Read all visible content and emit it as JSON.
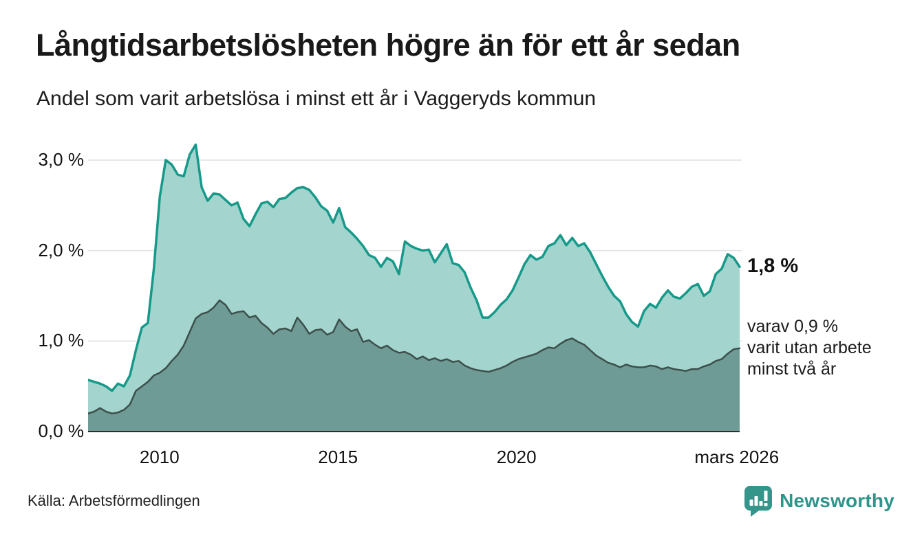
{
  "page": {
    "title": "Långtidsarbetslösheten högre än för ett år sedan",
    "subtitle": "Andel som varit arbetslösa i minst ett år i Vaggeryds kommun",
    "source": "Källa: Arbetsförmedlingen",
    "brand": {
      "name": "Newsworthy",
      "color": "#2e958b"
    }
  },
  "annotations": {
    "latest_value": "1,8 %",
    "secondary_line1": "varav 0,9 %",
    "secondary_line2": "varit utan arbete",
    "secondary_line3": "minst två år"
  },
  "chart_data": {
    "type": "area",
    "title": "Långtidsarbetslösheten högre än för ett år sedan",
    "subtitle": "Andel som varit arbetslösa i minst ett år i Vaggeryds kommun",
    "unit": "%",
    "x_start": "2008-01",
    "x_end": "2026-03",
    "x_step_months": 2,
    "x_domain": [
      2008.0,
      2026.25
    ],
    "ylim": [
      0,
      3.25
    ],
    "grid": true,
    "grid_color": "#e2e2e5",
    "axis_color": "#2e2e2e",
    "yticks": [
      {
        "value": 0,
        "label": "0,0 %"
      },
      {
        "value": 1,
        "label": "1,0 %"
      },
      {
        "value": 2,
        "label": "2,0 %"
      },
      {
        "value": 3,
        "label": "3,0 %"
      }
    ],
    "xticks": [
      {
        "t": 2010.0,
        "label": "2010"
      },
      {
        "t": 2015.0,
        "label": "2015"
      },
      {
        "t": 2020.0,
        "label": "2020"
      },
      {
        "t": 2026.17,
        "label": "mars 2026"
      }
    ],
    "series": [
      {
        "name": "Arbetslösa minst ett år",
        "end_value": 1.8,
        "end_label": "1,8 %",
        "line_color": "#17998a",
        "fill_color": "#a3d5ce",
        "line_width": 3.5,
        "values": [
          0.57,
          0.55,
          0.53,
          0.5,
          0.45,
          0.53,
          0.5,
          0.62,
          0.9,
          1.15,
          1.2,
          1.8,
          2.6,
          3.0,
          2.95,
          2.84,
          2.82,
          3.06,
          3.17,
          2.7,
          2.55,
          2.63,
          2.62,
          2.56,
          2.5,
          2.53,
          2.35,
          2.27,
          2.4,
          2.52,
          2.54,
          2.48,
          2.57,
          2.58,
          2.64,
          2.69,
          2.7,
          2.67,
          2.59,
          2.49,
          2.44,
          2.31,
          2.47,
          2.26,
          2.2,
          2.13,
          2.05,
          1.95,
          1.92,
          1.82,
          1.92,
          1.88,
          1.74,
          2.1,
          2.05,
          2.02,
          2.0,
          2.01,
          1.87,
          1.97,
          2.07,
          1.86,
          1.84,
          1.76,
          1.59,
          1.45,
          1.26,
          1.26,
          1.32,
          1.4,
          1.46,
          1.56,
          1.7,
          1.85,
          1.95,
          1.9,
          1.93,
          2.05,
          2.08,
          2.17,
          2.06,
          2.14,
          2.05,
          2.08,
          1.98,
          1.85,
          1.72,
          1.6,
          1.5,
          1.44,
          1.3,
          1.21,
          1.16,
          1.33,
          1.41,
          1.37,
          1.48,
          1.56,
          1.49,
          1.47,
          1.53,
          1.6,
          1.63,
          1.5,
          1.55,
          1.74,
          1.8,
          1.96,
          1.92,
          1.82
        ]
      },
      {
        "name": "Arbetslösa minst två år",
        "end_value": 0.9,
        "end_label": "varav 0,9 % varit utan arbete minst två år",
        "line_color": "#3c4f4b",
        "fill_color": "#6f9b96",
        "line_width": 2.5,
        "values": [
          0.2,
          0.22,
          0.26,
          0.22,
          0.2,
          0.21,
          0.24,
          0.3,
          0.45,
          0.5,
          0.55,
          0.62,
          0.65,
          0.7,
          0.78,
          0.85,
          0.95,
          1.1,
          1.25,
          1.3,
          1.32,
          1.37,
          1.45,
          1.4,
          1.3,
          1.32,
          1.33,
          1.26,
          1.28,
          1.2,
          1.15,
          1.08,
          1.13,
          1.14,
          1.11,
          1.26,
          1.18,
          1.08,
          1.12,
          1.13,
          1.07,
          1.1,
          1.24,
          1.16,
          1.11,
          1.13,
          0.99,
          1.01,
          0.96,
          0.92,
          0.95,
          0.9,
          0.87,
          0.88,
          0.85,
          0.8,
          0.83,
          0.79,
          0.81,
          0.78,
          0.8,
          0.77,
          0.78,
          0.73,
          0.7,
          0.68,
          0.67,
          0.66,
          0.68,
          0.7,
          0.73,
          0.77,
          0.8,
          0.82,
          0.84,
          0.86,
          0.9,
          0.93,
          0.92,
          0.97,
          1.01,
          1.03,
          0.99,
          0.96,
          0.9,
          0.84,
          0.8,
          0.76,
          0.74,
          0.71,
          0.74,
          0.72,
          0.71,
          0.71,
          0.73,
          0.72,
          0.69,
          0.71,
          0.69,
          0.68,
          0.67,
          0.69,
          0.69,
          0.72,
          0.74,
          0.78,
          0.8,
          0.86,
          0.91,
          0.92
        ]
      }
    ]
  }
}
